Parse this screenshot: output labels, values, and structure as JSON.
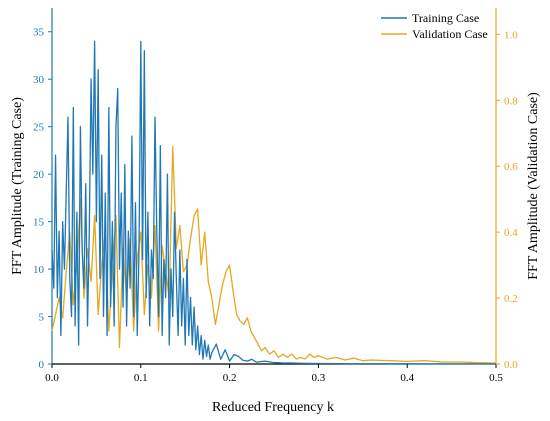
{
  "chart_data": {
    "type": "line",
    "title": "",
    "xlabel": "Reduced Frequency k",
    "ylabel_left": "FFT Amplitude (Training Case)",
    "ylabel_right": "FFT Amplitude (Validation Case)",
    "xlim": [
      0,
      0.5
    ],
    "ylim_left": [
      0,
      37.5
    ],
    "ylim_right": [
      0,
      1.08
    ],
    "x_ticks": [
      0.0,
      0.1,
      0.2,
      0.3,
      0.4,
      0.5
    ],
    "x_tick_labels": [
      "0.0",
      "0.1",
      "0.2",
      "0.3",
      "0.4",
      "0.5"
    ],
    "y_left_ticks": [
      0,
      5,
      10,
      15,
      20,
      25,
      30,
      35
    ],
    "y_left_tick_labels": [
      "0",
      "5",
      "10",
      "15",
      "20",
      "25",
      "30",
      "35"
    ],
    "y_right_ticks": [
      0.0,
      0.2,
      0.4,
      0.6,
      0.8,
      1.0
    ],
    "y_right_tick_labels": [
      "0.0",
      "0.2",
      "0.4",
      "0.6",
      "0.8",
      "1.0"
    ],
    "legend_position": "top-right",
    "grid": false,
    "colors": {
      "training": "#1f77b4",
      "validation": "#e5a81f"
    },
    "series": [
      {
        "name": "Training Case",
        "axis": "left",
        "x": [
          0.0,
          0.002,
          0.004,
          0.006,
          0.008,
          0.01,
          0.012,
          0.014,
          0.016,
          0.018,
          0.02,
          0.022,
          0.024,
          0.026,
          0.028,
          0.03,
          0.032,
          0.034,
          0.036,
          0.038,
          0.04,
          0.042,
          0.044,
          0.046,
          0.048,
          0.05,
          0.052,
          0.054,
          0.056,
          0.058,
          0.06,
          0.062,
          0.064,
          0.066,
          0.068,
          0.07,
          0.072,
          0.074,
          0.076,
          0.078,
          0.08,
          0.082,
          0.084,
          0.086,
          0.088,
          0.09,
          0.092,
          0.094,
          0.096,
          0.098,
          0.1,
          0.102,
          0.104,
          0.106,
          0.108,
          0.11,
          0.112,
          0.114,
          0.116,
          0.118,
          0.12,
          0.122,
          0.124,
          0.126,
          0.128,
          0.13,
          0.132,
          0.134,
          0.136,
          0.138,
          0.14,
          0.142,
          0.144,
          0.146,
          0.148,
          0.15,
          0.152,
          0.154,
          0.156,
          0.158,
          0.16,
          0.162,
          0.164,
          0.166,
          0.168,
          0.17,
          0.172,
          0.174,
          0.176,
          0.178,
          0.18,
          0.185,
          0.19,
          0.195,
          0.2,
          0.205,
          0.21,
          0.215,
          0.22,
          0.225,
          0.23,
          0.24,
          0.25,
          0.26,
          0.27,
          0.28,
          0.29,
          0.3,
          0.32,
          0.34,
          0.36,
          0.38,
          0.4,
          0.42,
          0.44,
          0.46,
          0.48,
          0.5
        ],
        "values": [
          12,
          8,
          22,
          7,
          14,
          3,
          15,
          10,
          18,
          26,
          9,
          5,
          27,
          4,
          16,
          2,
          25,
          12,
          8,
          19,
          4,
          14,
          30,
          20,
          34,
          15,
          31,
          9,
          22,
          5,
          18,
          3,
          27,
          6,
          15,
          4,
          25,
          29,
          10,
          18,
          6,
          21,
          4,
          14,
          8,
          24,
          5,
          17,
          3,
          12,
          34,
          11,
          33,
          7,
          16,
          4,
          12,
          9,
          26,
          14,
          5,
          23,
          3,
          11,
          7,
          20,
          2,
          10,
          5,
          16,
          9,
          3,
          12,
          4,
          9,
          2,
          11,
          3,
          7,
          2,
          6,
          1.5,
          4,
          1,
          3,
          0.5,
          2.5,
          0.8,
          2,
          0.5,
          1.2,
          2.1,
          0.5,
          1.5,
          0.3,
          1.0,
          0.8,
          0.4,
          0.3,
          0.5,
          0.2,
          0.3,
          0.15,
          0.1,
          0.1,
          0.08,
          0.06,
          0.05,
          0.04,
          0.03,
          0.03,
          0.02,
          0.02,
          0.01,
          0.01,
          0.01,
          0.01,
          0.01
        ]
      },
      {
        "name": "Validation Case",
        "axis": "right",
        "x": [
          0.0,
          0.004,
          0.008,
          0.012,
          0.016,
          0.02,
          0.024,
          0.028,
          0.032,
          0.036,
          0.04,
          0.044,
          0.048,
          0.052,
          0.056,
          0.06,
          0.064,
          0.068,
          0.072,
          0.076,
          0.08,
          0.084,
          0.088,
          0.092,
          0.096,
          0.1,
          0.104,
          0.108,
          0.112,
          0.116,
          0.12,
          0.124,
          0.128,
          0.132,
          0.136,
          0.14,
          0.144,
          0.148,
          0.152,
          0.156,
          0.16,
          0.164,
          0.168,
          0.172,
          0.176,
          0.18,
          0.184,
          0.188,
          0.192,
          0.196,
          0.2,
          0.204,
          0.208,
          0.212,
          0.216,
          0.22,
          0.224,
          0.228,
          0.232,
          0.236,
          0.24,
          0.245,
          0.25,
          0.255,
          0.26,
          0.265,
          0.27,
          0.275,
          0.28,
          0.285,
          0.29,
          0.295,
          0.3,
          0.31,
          0.32,
          0.33,
          0.34,
          0.35,
          0.36,
          0.38,
          0.4,
          0.42,
          0.44,
          0.46,
          0.48,
          0.5
        ],
        "values": [
          0.1,
          0.15,
          0.2,
          0.14,
          0.28,
          0.4,
          0.18,
          0.3,
          0.5,
          0.2,
          0.35,
          0.25,
          0.45,
          0.15,
          0.3,
          0.4,
          0.1,
          0.28,
          0.45,
          0.05,
          0.35,
          0.2,
          0.38,
          0.1,
          0.32,
          0.4,
          0.15,
          0.3,
          0.2,
          0.42,
          0.1,
          0.36,
          0.28,
          0.2,
          0.66,
          0.35,
          0.42,
          0.28,
          0.3,
          0.38,
          0.45,
          0.47,
          0.3,
          0.4,
          0.25,
          0.2,
          0.12,
          0.18,
          0.24,
          0.28,
          0.3,
          0.22,
          0.15,
          0.13,
          0.12,
          0.14,
          0.1,
          0.08,
          0.06,
          0.04,
          0.05,
          0.03,
          0.04,
          0.02,
          0.03,
          0.02,
          0.03,
          0.015,
          0.02,
          0.015,
          0.03,
          0.02,
          0.025,
          0.015,
          0.02,
          0.012,
          0.018,
          0.01,
          0.012,
          0.01,
          0.008,
          0.01,
          0.006,
          0.006,
          0.004,
          0.003
        ]
      }
    ]
  }
}
